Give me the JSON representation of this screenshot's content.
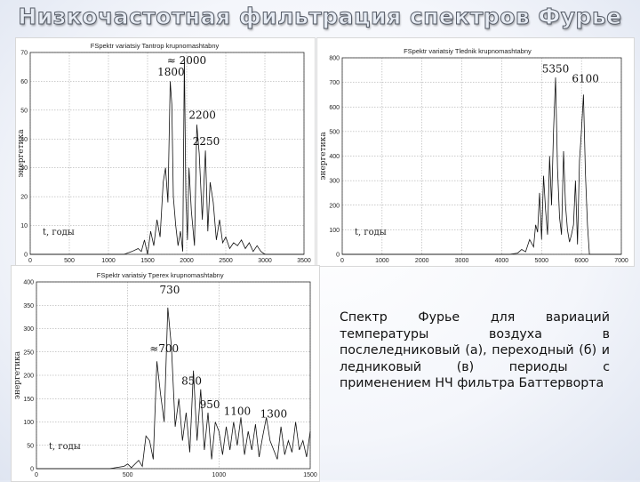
{
  "slide_title": "Низкочастотная фильтрация спектров Фурье",
  "caption": "Спектр Фурье для вариаций температуры воздуха в послеледниковый (а), переходный (б) и ледниковый (в) периоды с применением НЧ фильтра Баттерворта",
  "chart_data": [
    {
      "type": "line",
      "title": "FSpektr variatsiy Tantrop krupnomashtabny",
      "ylabel": "энергетика",
      "xlabel": "t, годы",
      "xlim": [
        0,
        3500
      ],
      "ylim": [
        0,
        70
      ],
      "xticks": [
        "0",
        "500",
        "1000",
        "1500",
        "2000",
        "2500",
        "3000",
        "3500"
      ],
      "yticks": [
        "0",
        "10",
        "20",
        "30",
        "40",
        "50",
        "60",
        "70"
      ],
      "grid": true,
      "annotations": [
        {
          "text": "1800",
          "x": 1800,
          "y": 62
        },
        {
          "text": "≈ 2000",
          "x": 2000,
          "y": 66
        },
        {
          "text": "2200",
          "x": 2200,
          "y": 47
        },
        {
          "text": "2250",
          "x": 2250,
          "y": 38
        }
      ],
      "series": [
        {
          "x": [
            0,
            900,
            1200,
            1300,
            1380,
            1420,
            1460,
            1500,
            1540,
            1580,
            1620,
            1660,
            1700,
            1730,
            1760,
            1790,
            1810,
            1830,
            1860,
            1890,
            1920,
            1950,
            1970,
            1990,
            2010,
            2030,
            2060,
            2100,
            2130,
            2160,
            2200,
            2240,
            2270,
            2300,
            2340,
            2380,
            2420,
            2460,
            2500,
            2550,
            2600,
            2650,
            2700,
            2750,
            2800,
            2850,
            2900,
            2950,
            3000,
            3500
          ],
          "y": [
            0,
            0,
            0,
            1,
            2,
            1,
            5,
            0,
            8,
            3,
            12,
            6,
            25,
            30,
            18,
            60,
            52,
            20,
            10,
            3,
            8,
            1,
            68,
            20,
            5,
            30,
            15,
            3,
            45,
            35,
            12,
            36,
            8,
            25,
            18,
            5,
            12,
            4,
            6,
            2,
            4,
            3,
            5,
            2,
            4,
            1,
            3,
            1,
            0,
            0
          ]
        }
      ]
    },
    {
      "type": "line",
      "title": "FSpektr variatsiy Tlednik krupnomashtabny",
      "ylabel": "энергетика",
      "xlabel": "t, годы",
      "xlim": [
        0,
        7000
      ],
      "ylim": [
        0,
        800
      ],
      "xticks": [
        "0",
        "1000",
        "2000",
        "3000",
        "4000",
        "5000",
        "6000",
        "7000"
      ],
      "yticks": [
        "0",
        "100",
        "200",
        "300",
        "400",
        "500",
        "600",
        "700",
        "800"
      ],
      "grid": true,
      "annotations": [
        {
          "text": "5350",
          "x": 5350,
          "y": 740
        },
        {
          "text": "6100",
          "x": 6100,
          "y": 700
        }
      ],
      "series": [
        {
          "x": [
            0,
            3800,
            4200,
            4400,
            4500,
            4600,
            4700,
            4800,
            4850,
            4900,
            4950,
            5000,
            5050,
            5100,
            5150,
            5200,
            5250,
            5300,
            5350,
            5400,
            5450,
            5500,
            5550,
            5600,
            5650,
            5700,
            5750,
            5800,
            5850,
            5900,
            5950,
            6000,
            6050,
            6100,
            6150,
            6200,
            6300,
            7000
          ],
          "y": [
            0,
            0,
            0,
            5,
            20,
            10,
            60,
            30,
            120,
            90,
            250,
            60,
            320,
            180,
            80,
            400,
            200,
            500,
            720,
            350,
            150,
            80,
            420,
            200,
            100,
            50,
            80,
            120,
            300,
            40,
            380,
            500,
            650,
            330,
            120,
            0,
            0,
            0
          ]
        }
      ]
    },
    {
      "type": "line",
      "title": "FSpektr variatsiy Tperex krupnomashtabny",
      "ylabel": "энергетика",
      "xlabel": "t, годы",
      "xlim": [
        0,
        1500
      ],
      "ylim": [
        0,
        400
      ],
      "xticks": [
        "0",
        "500",
        "1000",
        "1500"
      ],
      "yticks": [
        "0",
        "50",
        "100",
        "150",
        "200",
        "250",
        "300",
        "350",
        "400"
      ],
      "grid": true,
      "annotations": [
        {
          "text": "730",
          "x": 730,
          "y": 375
        },
        {
          "text": "≈700",
          "x": 700,
          "y": 250
        },
        {
          "text": "850",
          "x": 850,
          "y": 180
        },
        {
          "text": "950",
          "x": 950,
          "y": 130
        },
        {
          "text": "1100",
          "x": 1100,
          "y": 115
        },
        {
          "text": "1300",
          "x": 1300,
          "y": 110
        }
      ],
      "series": [
        {
          "x": [
            0,
            400,
            480,
            500,
            520,
            560,
            580,
            600,
            620,
            640,
            660,
            680,
            700,
            720,
            740,
            760,
            780,
            800,
            820,
            840,
            860,
            880,
            900,
            920,
            940,
            960,
            980,
            1000,
            1020,
            1040,
            1060,
            1080,
            1100,
            1120,
            1140,
            1160,
            1180,
            1200,
            1220,
            1240,
            1260,
            1280,
            1300,
            1320,
            1340,
            1360,
            1380,
            1400,
            1420,
            1440,
            1460,
            1480,
            1500
          ],
          "y": [
            0,
            0,
            5,
            10,
            2,
            18,
            5,
            70,
            60,
            20,
            230,
            160,
            100,
            345,
            260,
            90,
            150,
            60,
            120,
            35,
            210,
            60,
            170,
            40,
            120,
            20,
            100,
            80,
            30,
            90,
            40,
            100,
            50,
            110,
            30,
            80,
            40,
            95,
            25,
            70,
            110,
            60,
            40,
            20,
            90,
            30,
            60,
            35,
            100,
            40,
            60,
            25,
            80
          ]
        }
      ]
    }
  ]
}
